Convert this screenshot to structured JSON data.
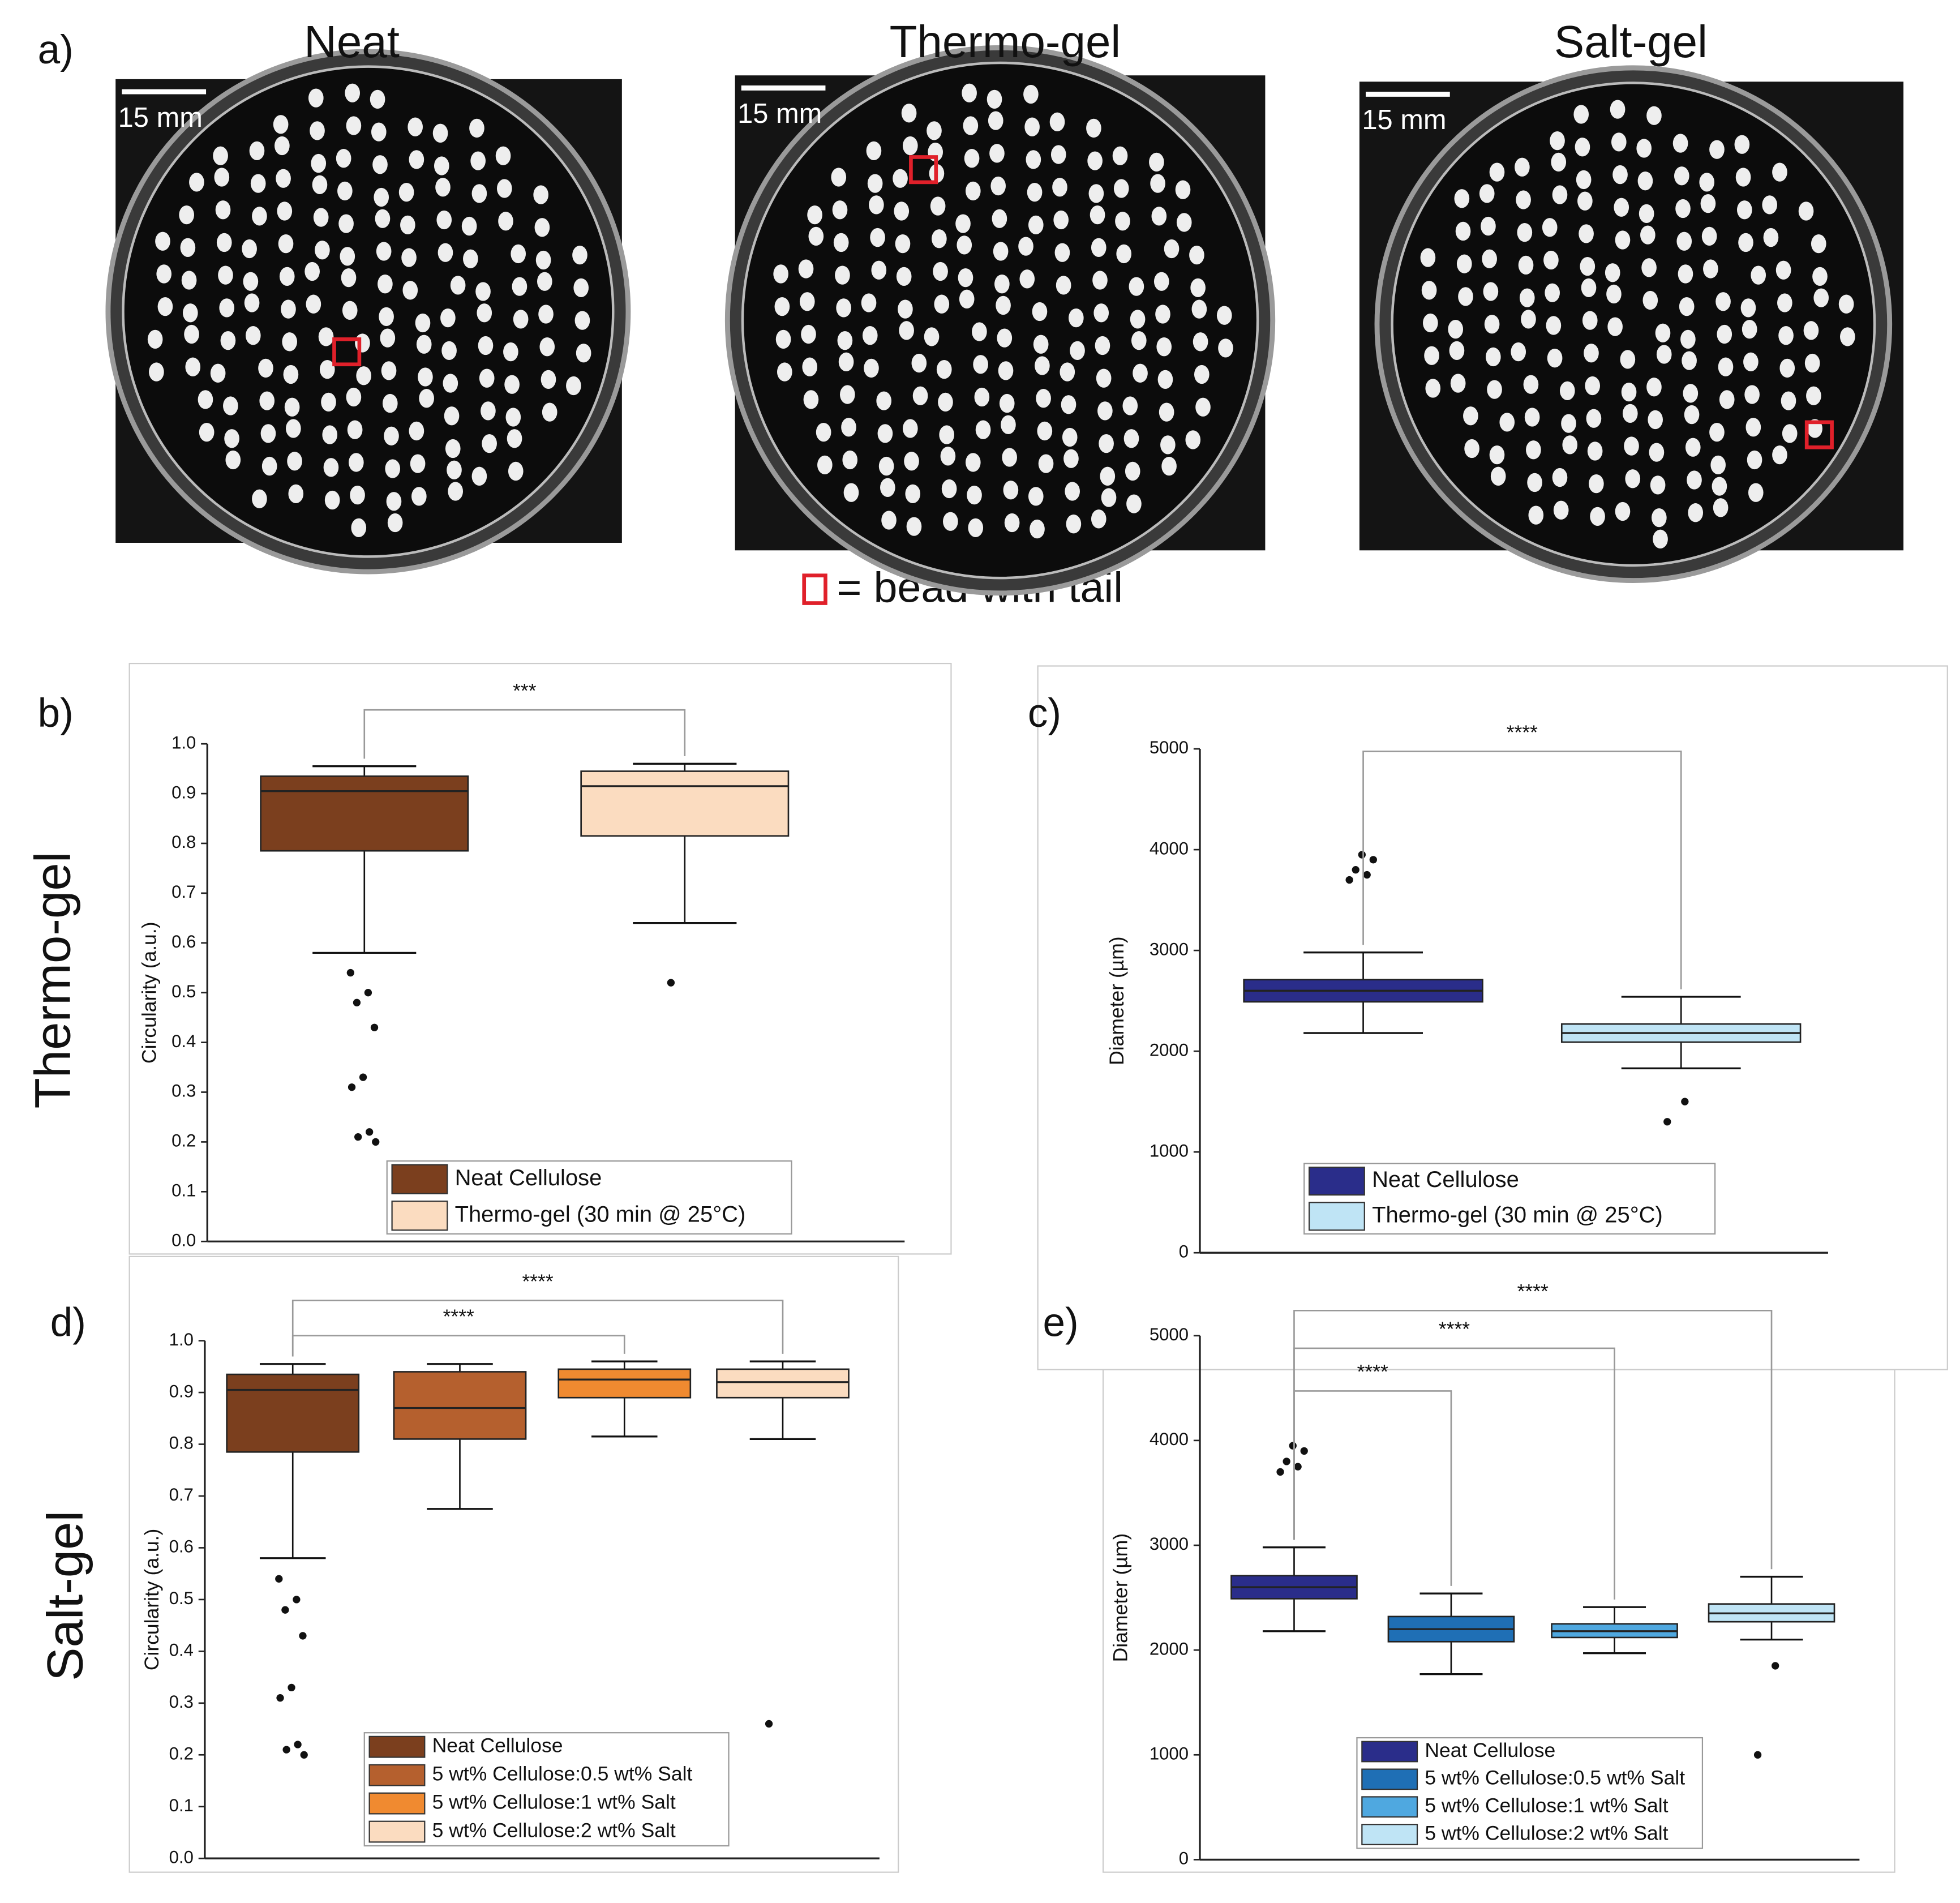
{
  "figure": {
    "panel": "a)",
    "legend": "= bead with tail",
    "photos": [
      {
        "title": "Neat",
        "scale": "15 mm"
      },
      {
        "title": "Thermo-gel",
        "scale": "15 mm"
      },
      {
        "title": "Salt-gel",
        "scale": "15 mm"
      }
    ]
  },
  "chart_data": [
    {
      "type": "box",
      "panel": "b)",
      "side_label": "Thermo-gel",
      "y_label": "Circularity (a.u.)",
      "ylim": [
        0,
        1
      ],
      "yticks": [
        {
          "value": 0,
          "label": "0.0"
        },
        0.1,
        0.2,
        0.3,
        0.4,
        0.5,
        0.6,
        0.7,
        0.8,
        0.9,
        {
          "value": 1,
          "label": "1.0"
        }
      ],
      "significance": [
        "***"
      ],
      "series": [
        {
          "name": "Neat Cellulose",
          "color": "#7b3f1e",
          "low": 0.58,
          "q1": 0.785,
          "median": 0.905,
          "q3": 0.935,
          "high": 0.955,
          "outliers": [
            0.54,
            0.5,
            0.48,
            0.43,
            0.33,
            0.31,
            0.22,
            0.21,
            0.2
          ]
        },
        {
          "name": "Thermo-gel (30 min @ 25°C)",
          "color": "#fbdcc0",
          "low": 0.64,
          "q1": 0.815,
          "median": 0.915,
          "q3": 0.945,
          "high": 0.96,
          "outliers": [
            0.52
          ]
        }
      ]
    },
    {
      "type": "box",
      "panel": "c)",
      "y_label": "Diameter (µm)",
      "ylim": [
        0,
        5000
      ],
      "yticks": [
        0,
        1000,
        2000,
        3000,
        4000,
        5000
      ],
      "significance": [
        "****"
      ],
      "series": [
        {
          "name": "Neat Cellulose",
          "color": "#2a2d8a",
          "low": 2180,
          "q1": 2490,
          "median": 2600,
          "q3": 2710,
          "high": 2980,
          "outliers": [
            3700,
            3750,
            3800,
            3900,
            3950
          ]
        },
        {
          "name": "Thermo-gel (30 min @ 25°C)",
          "color": "#bfe4f5",
          "low": 1830,
          "q1": 2090,
          "median": 2180,
          "q3": 2270,
          "high": 2540,
          "outliers": [
            1300,
            1500
          ]
        }
      ]
    },
    {
      "type": "box",
      "panel": "d)",
      "side_label": "Salt-gel",
      "y_label": "Circularity (a.u.)",
      "ylim": [
        0,
        1
      ],
      "yticks": [
        {
          "value": 0,
          "label": "0.0"
        },
        0.1,
        0.2,
        0.3,
        0.4,
        0.5,
        0.6,
        0.7,
        0.8,
        0.9,
        {
          "value": 1,
          "label": "1.0"
        }
      ],
      "significance": [
        "****",
        "****"
      ],
      "series": [
        {
          "name": "Neat Cellulose",
          "color": "#7b3f1e",
          "low": 0.58,
          "q1": 0.785,
          "median": 0.905,
          "q3": 0.935,
          "high": 0.955,
          "outliers": [
            0.54,
            0.5,
            0.48,
            0.43,
            0.33,
            0.31,
            0.22,
            0.21,
            0.2
          ]
        },
        {
          "name": "5 wt% Cellulose:0.5 wt% Salt",
          "color": "#b5602e",
          "low": 0.675,
          "q1": 0.81,
          "median": 0.87,
          "q3": 0.94,
          "high": 0.955,
          "outliers": []
        },
        {
          "name": "5 wt% Cellulose:1 wt% Salt",
          "color": "#f08a30",
          "low": 0.815,
          "q1": 0.89,
          "median": 0.925,
          "q3": 0.945,
          "high": 0.96,
          "outliers": []
        },
        {
          "name": "5 wt% Cellulose:2 wt% Salt",
          "color": "#fbdcc0",
          "low": 0.81,
          "q1": 0.89,
          "median": 0.92,
          "q3": 0.945,
          "high": 0.96,
          "outliers": [
            0.26
          ]
        }
      ]
    },
    {
      "type": "box",
      "panel": "e)",
      "y_label": "Diameter (µm)",
      "ylim": [
        0,
        5000
      ],
      "yticks": [
        0,
        1000,
        2000,
        3000,
        4000,
        5000
      ],
      "significance": [
        "****",
        "****",
        "****"
      ],
      "series": [
        {
          "name": "Neat Cellulose",
          "color": "#2a2d8a",
          "low": 2180,
          "q1": 2490,
          "median": 2600,
          "q3": 2710,
          "high": 2980,
          "outliers": [
            3700,
            3750,
            3800,
            3900,
            3950
          ]
        },
        {
          "name": "5 wt% Cellulose:0.5 wt% Salt",
          "color": "#1f6fb5",
          "low": 1770,
          "q1": 2080,
          "median": 2200,
          "q3": 2320,
          "high": 2540,
          "outliers": []
        },
        {
          "name": "5 wt% Cellulose:1 wt% Salt",
          "color": "#4fa8e0",
          "low": 1970,
          "q1": 2120,
          "median": 2180,
          "q3": 2250,
          "high": 2410,
          "outliers": []
        },
        {
          "name": "5 wt% Cellulose:2 wt% Salt",
          "color": "#bfe4f5",
          "low": 2100,
          "q1": 2270,
          "median": 2350,
          "q3": 2440,
          "high": 2700,
          "outliers": [
            1000,
            1850
          ]
        }
      ]
    }
  ]
}
